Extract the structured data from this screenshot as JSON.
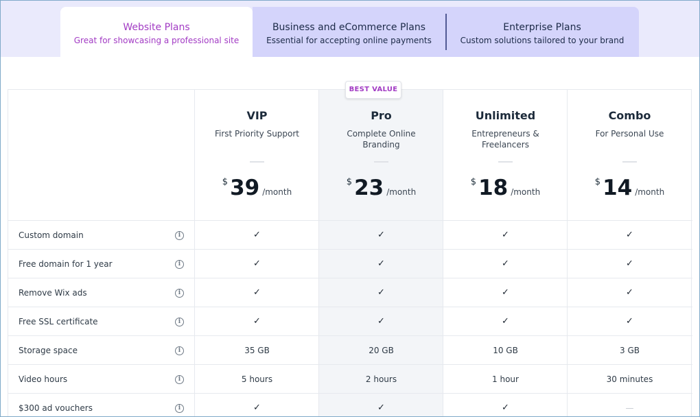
{
  "tabs": [
    {
      "title": "Website Plans",
      "subtitle": "Great for showcasing a professional site",
      "active": true
    },
    {
      "title": "Business and eCommerce Plans",
      "subtitle": "Essential for accepting online payments",
      "active": false
    },
    {
      "title": "Enterprise Plans",
      "subtitle": "Custom solutions tailored to your brand",
      "active": false
    }
  ],
  "badge": "BEST VALUE",
  "plans": [
    {
      "name": "VIP",
      "desc": "First Priority Support",
      "currency": "$",
      "price": "39",
      "per": "/month"
    },
    {
      "name": "Pro",
      "desc": "Complete Online Branding",
      "currency": "$",
      "price": "23",
      "per": "/month"
    },
    {
      "name": "Unlimited",
      "desc": "Entrepreneurs & Freelancers",
      "currency": "$",
      "price": "18",
      "per": "/month"
    },
    {
      "name": "Combo",
      "desc": "For Personal Use",
      "currency": "$",
      "price": "14",
      "per": "/month"
    }
  ],
  "features": [
    {
      "label": "Custom domain",
      "values": [
        "✓",
        "✓",
        "✓",
        "✓"
      ]
    },
    {
      "label": "Free domain for 1 year",
      "values": [
        "✓",
        "✓",
        "✓",
        "✓"
      ]
    },
    {
      "label": "Remove Wix ads",
      "values": [
        "✓",
        "✓",
        "✓",
        "✓"
      ]
    },
    {
      "label": "Free SSL certificate",
      "values": [
        "✓",
        "✓",
        "✓",
        "✓"
      ]
    },
    {
      "label": "Storage space",
      "values": [
        "35 GB",
        "20 GB",
        "10 GB",
        "3 GB"
      ]
    },
    {
      "label": "Video hours",
      "values": [
        "5 hours",
        "2 hours",
        "1 hour",
        "30 minutes"
      ]
    },
    {
      "label": "$300 ad vouchers",
      "values": [
        "✓",
        "✓",
        "✓",
        "—"
      ]
    }
  ],
  "colors": {
    "accent": "#a23bc4",
    "tab_band": "#eaeafc",
    "tab_inactive": "#d4d4fb",
    "pro_column": "#f3f5f8"
  },
  "icons": {
    "info": "info-icon",
    "check": "check-icon"
  }
}
